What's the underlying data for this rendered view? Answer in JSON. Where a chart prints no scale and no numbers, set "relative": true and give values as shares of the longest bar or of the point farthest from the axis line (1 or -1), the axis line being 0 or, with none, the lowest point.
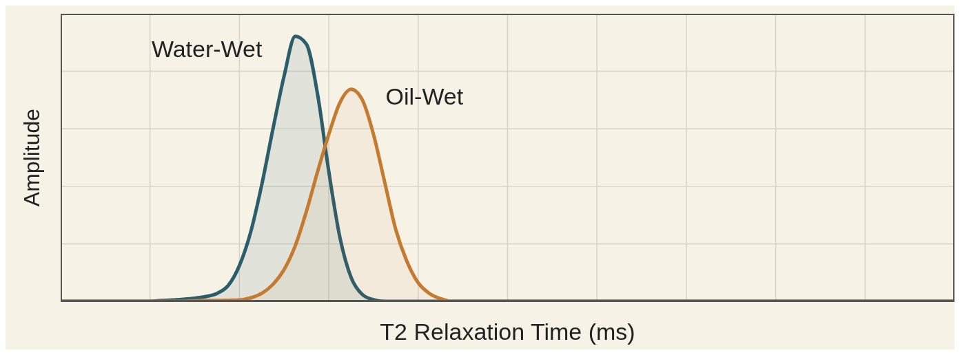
{
  "chart_data": {
    "type": "area",
    "relative": true,
    "xlabel": "T2 Relaxation Time (ms)",
    "ylabel": "Amplitude",
    "grid": true,
    "legend": false,
    "categories": [
      null,
      null,
      null,
      null,
      null,
      null,
      null,
      null,
      null,
      null,
      null,
      null,
      null,
      null,
      null,
      null,
      null,
      null,
      null,
      null,
      null,
      null,
      null,
      null,
      null,
      null,
      null,
      null,
      null,
      null,
      null,
      null,
      null,
      null,
      null,
      null,
      null,
      null,
      null,
      null,
      null,
      null,
      null,
      null,
      null,
      null,
      null,
      null,
      null,
      null,
      null,
      null,
      null,
      null,
      null,
      null,
      null,
      null,
      null,
      null,
      null,
      null,
      null,
      null,
      null,
      null,
      null,
      null,
      null,
      null,
      null,
      null,
      null,
      null,
      null,
      null,
      null,
      null,
      null,
      null,
      null
    ],
    "series": [
      {
        "name": "Water-Wet",
        "color": "#2b5d6b",
        "values": [
          0,
          0,
          0,
          0,
          0,
          0,
          0,
          0,
          0,
          0.003,
          0.005,
          0.008,
          0.012,
          0.018,
          0.03,
          0.06,
          0.135,
          0.26,
          0.44,
          0.65,
          0.85,
          1,
          0.97,
          0.78,
          0.49,
          0.24,
          0.09,
          0.026,
          0.006,
          0,
          0,
          0,
          0,
          0,
          0,
          0,
          0,
          0,
          0,
          0,
          0,
          0,
          0,
          0,
          0,
          0,
          0,
          0,
          0,
          0,
          0,
          0,
          0,
          0,
          0,
          0,
          0,
          0,
          0,
          0,
          0,
          0,
          0,
          0,
          0,
          0,
          0,
          0,
          0,
          0,
          0,
          0,
          0,
          0,
          0,
          0,
          0,
          0,
          0,
          0,
          0
        ]
      },
      {
        "name": "Oil-Wet",
        "color": "#c27b30",
        "values": [
          0,
          0,
          0,
          0,
          0,
          0,
          0,
          0,
          0,
          0,
          0,
          0,
          0.002,
          0.003,
          0.003,
          0.004,
          0.005,
          0.013,
          0.03,
          0.064,
          0.12,
          0.21,
          0.34,
          0.49,
          0.63,
          0.75,
          0.8,
          0.76,
          0.63,
          0.45,
          0.27,
          0.15,
          0.07,
          0.03,
          0.01,
          0,
          0,
          0,
          0,
          0,
          0,
          0,
          0,
          0,
          0,
          0,
          0,
          0,
          0,
          0,
          0,
          0,
          0,
          0,
          0,
          0,
          0,
          0,
          0,
          0,
          0,
          0,
          0,
          0,
          0,
          0,
          0,
          0,
          0,
          0,
          0,
          0,
          0,
          0,
          0,
          0,
          0,
          0,
          0,
          0,
          0
        ]
      }
    ]
  }
}
